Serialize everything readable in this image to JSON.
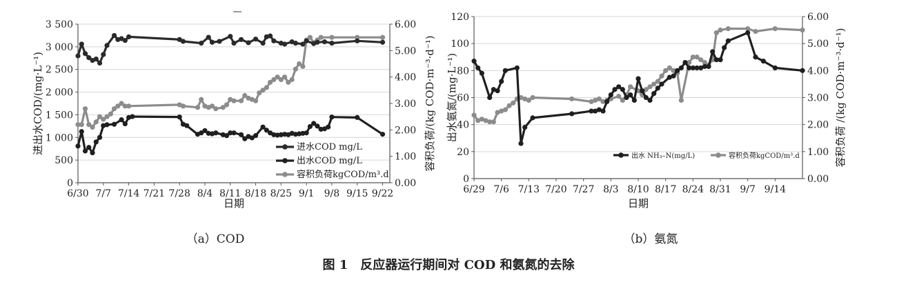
{
  "figure_title": "图 1　反应器运行期间对 COD 和氨氮的去除",
  "chart_data": [
    {
      "id": "a",
      "type": "line",
      "caption": "（a）COD",
      "xlabel": "日期",
      "ylabel": "进出水COD/(mg·L⁻¹)",
      "y2label": "容积负荷/(kg COD·m⁻³·d⁻¹)",
      "xlim": [
        0,
        86
      ],
      "ylim": [
        0,
        3500
      ],
      "y2lim": [
        0,
        6
      ],
      "xticks": [
        0,
        7,
        14,
        21,
        28,
        35,
        42,
        49,
        56,
        63,
        70,
        77,
        84
      ],
      "xtick_labels": [
        "6/30",
        "7/7",
        "7/14",
        "7/21",
        "7/28",
        "8/4",
        "8/11",
        "8/18",
        "8/25",
        "9/1",
        "9/8",
        "9/15",
        "9/22"
      ],
      "yticks": [
        0,
        500,
        1000,
        1500,
        2000,
        2500,
        3000,
        3500
      ],
      "ytick_labels": [
        "0",
        "500",
        "1 000",
        "1 500",
        "2 000",
        "2 500",
        "3 000",
        "3 500"
      ],
      "y2ticks": [
        0,
        1,
        2,
        3,
        4,
        5,
        6
      ],
      "y2tick_labels": [
        "0.00",
        "1.00",
        "2.00",
        "3.00",
        "4.00",
        "5.00",
        "6.00"
      ],
      "grid": true,
      "legend_position": "bottom-right",
      "series": [
        {
          "name": "进水COD mg/L",
          "axis": "left",
          "color": "#2a2a2a",
          "x": [
            0,
            1,
            2,
            3,
            4,
            5,
            6,
            7,
            8,
            10,
            11,
            12,
            13,
            14,
            28,
            29,
            34,
            36,
            37,
            39,
            42,
            43,
            45,
            47,
            49,
            51,
            52,
            53,
            54,
            56,
            57,
            59,
            60,
            62,
            63,
            65,
            66,
            68,
            70,
            77,
            84
          ],
          "y": [
            2800,
            3060,
            2850,
            2760,
            2700,
            2730,
            2640,
            2830,
            3030,
            3250,
            3160,
            3180,
            3140,
            3220,
            3160,
            3120,
            3080,
            3210,
            3100,
            3120,
            3230,
            3080,
            3160,
            3090,
            3170,
            3080,
            3220,
            3240,
            3130,
            3080,
            3060,
            3110,
            3080,
            3060,
            3130,
            3070,
            3100,
            3110,
            3080,
            3130,
            3100
          ]
        },
        {
          "name": "出水COD mg/L",
          "axis": "left",
          "color": "#1f1f1f",
          "x": [
            0,
            1,
            2,
            3,
            4,
            5,
            6,
            7,
            8,
            10,
            12,
            13,
            14,
            15,
            28,
            29,
            30,
            33,
            34,
            35,
            36,
            37,
            38,
            40,
            41,
            42,
            43,
            45,
            46,
            47,
            48,
            49,
            51,
            52,
            53,
            54,
            55,
            56,
            57,
            58,
            59,
            60,
            61,
            62,
            63,
            64,
            65,
            66,
            67,
            68,
            69,
            70,
            77,
            84
          ],
          "y": [
            810,
            1130,
            700,
            780,
            660,
            900,
            1000,
            1260,
            1280,
            1290,
            1390,
            1300,
            1440,
            1460,
            1450,
            1290,
            1260,
            1070,
            1100,
            1150,
            1090,
            1080,
            1100,
            1060,
            1040,
            1100,
            1100,
            1060,
            970,
            1020,
            990,
            1040,
            1230,
            1160,
            1100,
            1060,
            1050,
            1060,
            1070,
            1060,
            1090,
            1070,
            1080,
            1090,
            1100,
            1240,
            1310,
            1250,
            1180,
            1190,
            1230,
            1450,
            1440,
            1070
          ]
        },
        {
          "name": "容积负荷kgCOD/m³.d",
          "axis": "right",
          "color": "#8c8c8c",
          "x": [
            0,
            1,
            2,
            3,
            4,
            5,
            6,
            7,
            8,
            9,
            10,
            11,
            12,
            13,
            14,
            28,
            29,
            33,
            34,
            35,
            36,
            37,
            38,
            40,
            41,
            42,
            43,
            45,
            46,
            47,
            48,
            49,
            50,
            51,
            52,
            53,
            54,
            55,
            56,
            57,
            58,
            59,
            60,
            61,
            62,
            63,
            64,
            65,
            66,
            67,
            70,
            77,
            84
          ],
          "y": [
            2.2,
            2.2,
            2.8,
            2.2,
            2.1,
            2.3,
            2.5,
            2.4,
            2.5,
            2.6,
            2.8,
            2.9,
            3.0,
            2.9,
            2.9,
            2.95,
            2.9,
            2.85,
            3.15,
            2.9,
            2.85,
            2.9,
            2.8,
            2.85,
            2.95,
            3.15,
            3.1,
            3.1,
            3.3,
            3.2,
            3.15,
            3.1,
            3.4,
            3.5,
            3.6,
            3.8,
            3.9,
            4.0,
            3.9,
            4.0,
            3.8,
            3.9,
            4.3,
            4.5,
            4.4,
            5.4,
            5.5,
            5.3,
            5.4,
            5.5,
            5.5,
            5.5,
            5.5
          ]
        }
      ]
    },
    {
      "id": "b",
      "type": "line",
      "caption": "（b）氨氮",
      "xlabel": "日期",
      "ylabel": "出水氨氮/(mg·L⁻¹)",
      "y2label": "容积负荷 /(kg COD·m⁻³·d⁻¹)",
      "xlim": [
        0,
        84
      ],
      "ylim": [
        0,
        120
      ],
      "y2lim": [
        0,
        6
      ],
      "xticks": [
        0,
        7,
        14,
        21,
        28,
        35,
        42,
        49,
        56,
        63,
        70,
        77
      ],
      "xtick_labels": [
        "6/29",
        "7/6",
        "7/13",
        "7/20",
        "7/27",
        "8/3",
        "8/10",
        "8/17",
        "8/24",
        "8/31",
        "9/7",
        "9/14"
      ],
      "yticks": [
        0,
        20,
        40,
        60,
        80,
        100,
        120
      ],
      "ytick_labels": [
        "0",
        "20",
        "40",
        "60",
        "80",
        "100",
        "120"
      ],
      "y2ticks": [
        0,
        1,
        2,
        3,
        4,
        5,
        6
      ],
      "y2tick_labels": [
        "0.00",
        "1.00",
        "2.00",
        "3.00",
        "4.00",
        "5.00",
        "6.00"
      ],
      "grid": true,
      "legend_position": "bottom-right",
      "series": [
        {
          "name": "出水 NH₃–N(mg/L)",
          "axis": "left",
          "color": "#1f1f1f",
          "x": [
            0,
            1,
            2,
            4,
            5,
            6,
            7,
            8,
            11,
            12,
            13,
            15,
            25,
            30,
            31,
            32,
            33,
            34,
            35,
            36,
            37,
            38,
            39,
            40,
            41,
            42,
            43,
            44,
            45,
            46,
            47,
            48,
            50,
            51,
            52,
            53,
            54,
            55,
            56,
            57,
            58,
            59,
            60,
            61,
            62,
            63,
            64,
            65,
            70,
            72,
            74,
            77,
            84
          ],
          "y": [
            87,
            82,
            78,
            60,
            66,
            65,
            72,
            80,
            82,
            26,
            38,
            45,
            48,
            50,
            50,
            51,
            50,
            57,
            62,
            66,
            68,
            66,
            60,
            62,
            58,
            74,
            65,
            60,
            58,
            63,
            67,
            70,
            75,
            76,
            80,
            82,
            86,
            82,
            82,
            82,
            82,
            83,
            83,
            94,
            88,
            88,
            97,
            102,
            108,
            90,
            87,
            82,
            80
          ]
        },
        {
          "name": "容积负荷kgCOD/m³.d",
          "axis": "right",
          "color": "#8c8c8c",
          "x": [
            0,
            1,
            2,
            3,
            4,
            5,
            6,
            7,
            8,
            9,
            10,
            11,
            12,
            13,
            14,
            15,
            25,
            30,
            31,
            32,
            33,
            34,
            35,
            37,
            38,
            39,
            40,
            42,
            43,
            44,
            45,
            46,
            47,
            48,
            49,
            50,
            51,
            52,
            53,
            55,
            56,
            57,
            58,
            59,
            60,
            61,
            62,
            63,
            65,
            70,
            72,
            77,
            84
          ],
          "y": [
            2.35,
            2.15,
            2.2,
            2.15,
            2.1,
            2.1,
            2.45,
            2.5,
            2.55,
            2.7,
            2.8,
            2.95,
            3.0,
            2.95,
            2.9,
            3.0,
            2.95,
            2.85,
            2.9,
            2.95,
            2.85,
            2.9,
            2.95,
            3.05,
            2.9,
            3.1,
            3.4,
            3.25,
            3.1,
            3.3,
            3.4,
            3.5,
            3.6,
            3.8,
            4.0,
            4.1,
            4.0,
            3.9,
            2.9,
            4.3,
            4.5,
            4.5,
            4.4,
            4.3,
            4.2,
            4.4,
            5.4,
            5.5,
            5.55,
            5.55,
            5.45,
            5.55,
            5.5
          ]
        }
      ]
    }
  ]
}
